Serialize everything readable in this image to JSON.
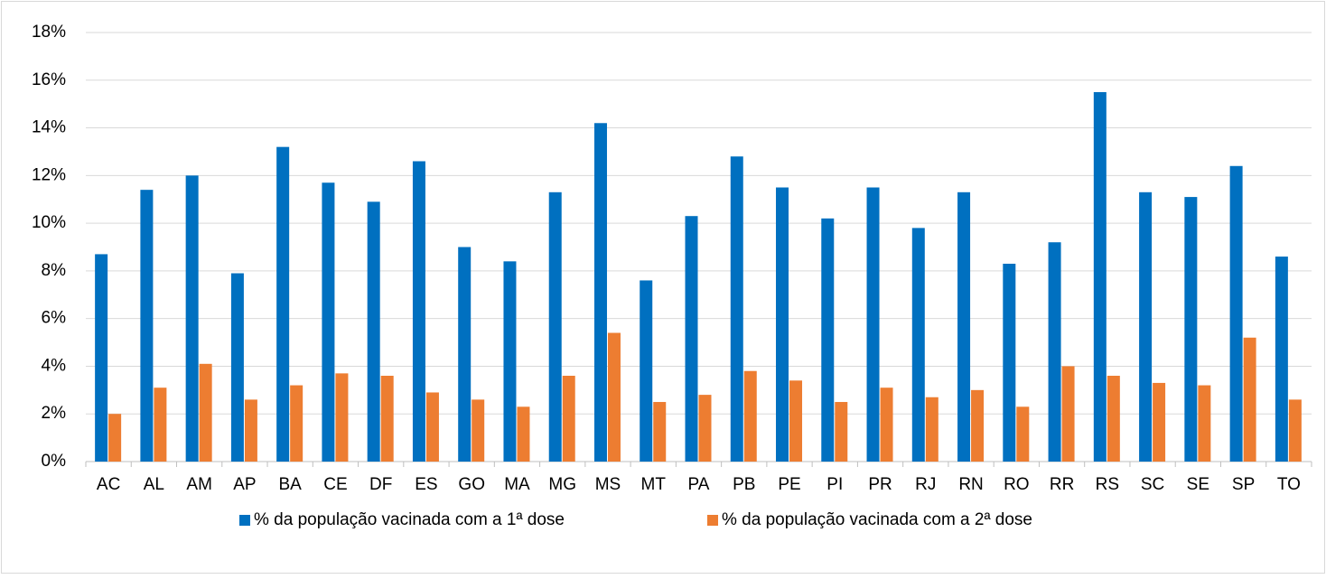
{
  "chart_data": {
    "type": "bar",
    "categories": [
      "AC",
      "AL",
      "AM",
      "AP",
      "BA",
      "CE",
      "DF",
      "ES",
      "GO",
      "MA",
      "MG",
      "MS",
      "MT",
      "PA",
      "PB",
      "PE",
      "PI",
      "PR",
      "RJ",
      "RN",
      "RO",
      "RR",
      "RS",
      "SC",
      "SE",
      "SP",
      "TO"
    ],
    "series": [
      {
        "name": "% da população vacinada com a 1ª dose",
        "color": "#0070c0",
        "values": [
          8.7,
          11.4,
          12.0,
          7.9,
          13.2,
          11.7,
          10.9,
          12.6,
          9.0,
          8.4,
          11.3,
          14.2,
          7.6,
          10.3,
          12.8,
          11.5,
          10.2,
          11.5,
          9.8,
          11.3,
          8.3,
          9.2,
          15.5,
          11.3,
          11.1,
          12.4,
          8.6
        ]
      },
      {
        "name": "% da população vacinada com a 2ª dose",
        "color": "#ed7d31",
        "values": [
          2.0,
          3.1,
          4.1,
          2.6,
          3.2,
          3.7,
          3.6,
          2.9,
          2.6,
          2.3,
          3.6,
          5.4,
          2.5,
          2.8,
          3.8,
          3.4,
          2.5,
          3.1,
          2.7,
          3.0,
          2.3,
          4.0,
          3.6,
          3.3,
          3.2,
          5.2,
          2.6
        ]
      }
    ],
    "ylim": [
      0,
      18
    ],
    "yticks": [
      {
        "value": 0,
        "label": "0%"
      },
      {
        "value": 2,
        "label": "2%"
      },
      {
        "value": 4,
        "label": "4%"
      },
      {
        "value": 6,
        "label": "6%"
      },
      {
        "value": 8,
        "label": "8%"
      },
      {
        "value": 10,
        "label": "10%"
      },
      {
        "value": 12,
        "label": "12%"
      },
      {
        "value": 14,
        "label": "14%"
      },
      {
        "value": 16,
        "label": "16%"
      },
      {
        "value": 18,
        "label": "18%"
      }
    ],
    "grid": true,
    "legend": "bottom"
  }
}
